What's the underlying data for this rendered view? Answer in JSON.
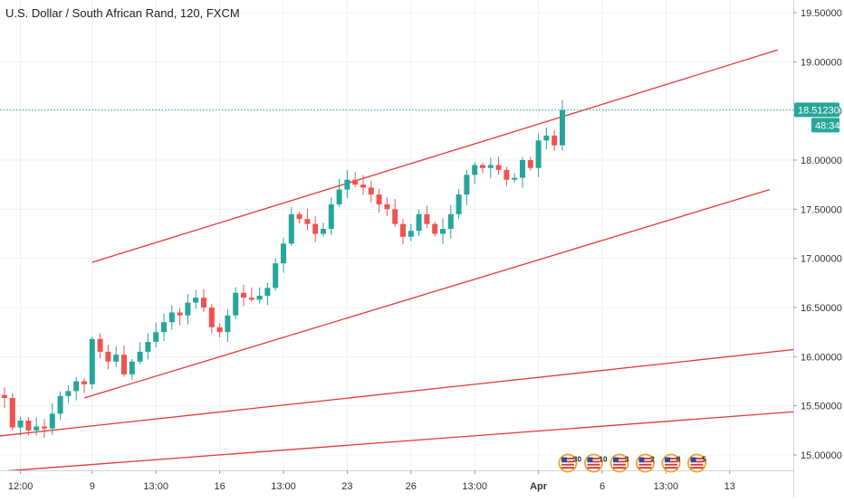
{
  "title": "U.S. Dollar / South African Rand, 120, FXCM",
  "price_tag": {
    "value": "18.51230",
    "countdown": "48:34"
  },
  "colors": {
    "up": "#26a69a",
    "down": "#ef5350",
    "trendline": "#e53935",
    "grid": "#eef0f3",
    "axis_text": "#333333",
    "tag_bg": "#26a69a",
    "price_line": "#26a69a"
  },
  "event_icons": [
    {
      "icon": "us-flag-icon",
      "count": "30"
    },
    {
      "icon": "us-flag-icon",
      "count": "10"
    },
    {
      "icon": "us-flag-icon",
      "count": "3"
    },
    {
      "icon": "us-flag-icon",
      "count": "2"
    },
    {
      "icon": "us-flag-icon",
      "count": "8"
    },
    {
      "icon": "us-flag-icon",
      "count": "5"
    }
  ],
  "chart_data": {
    "type": "candlestick",
    "ylim": [
      14.8,
      19.62
    ],
    "grid": true,
    "y_ticks": [
      "19.50000",
      "19.00000",
      "18.50000",
      "18.00000",
      "17.50000",
      "17.00000",
      "16.50000",
      "16.00000",
      "15.50000",
      "15.00000"
    ],
    "y_tick_values": [
      19.5,
      19.0,
      18.5,
      18.0,
      17.5,
      17.0,
      16.5,
      16.0,
      15.5,
      15.0
    ],
    "x_ticks": [
      "12:00",
      "9",
      "13:00",
      "16",
      "13:00",
      "23",
      "26",
      "13:00",
      "Apr",
      "6",
      "13:00",
      "13"
    ],
    "x_tick_bars": [
      2,
      11,
      19,
      27,
      35,
      43,
      51,
      59,
      67,
      75,
      83,
      91
    ],
    "x_tick_bold": [
      false,
      false,
      false,
      false,
      false,
      false,
      false,
      false,
      true,
      false,
      false,
      false
    ],
    "price_levels": [
      {
        "x": 0,
        "close": 15.58
      },
      {
        "x": 1,
        "close": 15.28
      },
      {
        "x": 2,
        "close": 15.35
      },
      {
        "x": 3,
        "close": 15.25
      },
      {
        "x": 4,
        "close": 15.29
      },
      {
        "x": 5,
        "close": 15.27
      },
      {
        "x": 6,
        "close": 15.42
      },
      {
        "x": 7,
        "close": 15.6
      },
      {
        "x": 8,
        "close": 15.65
      },
      {
        "x": 9,
        "close": 15.75
      },
      {
        "x": 10,
        "close": 15.72
      },
      {
        "x": 11,
        "close": 16.18
      },
      {
        "x": 12,
        "close": 16.05
      },
      {
        "x": 13,
        "close": 15.95
      },
      {
        "x": 14,
        "close": 16.02
      },
      {
        "x": 15,
        "close": 15.82
      },
      {
        "x": 16,
        "close": 15.95
      },
      {
        "x": 17,
        "close": 16.05
      },
      {
        "x": 18,
        "close": 16.15
      },
      {
        "x": 19,
        "close": 16.25
      },
      {
        "x": 20,
        "close": 16.35
      },
      {
        "x": 21,
        "close": 16.45
      },
      {
        "x": 22,
        "close": 16.42
      },
      {
        "x": 23,
        "close": 16.55
      },
      {
        "x": 24,
        "close": 16.6
      },
      {
        "x": 25,
        "close": 16.5
      },
      {
        "x": 26,
        "close": 16.3
      },
      {
        "x": 27,
        "close": 16.25
      },
      {
        "x": 28,
        "close": 16.42
      },
      {
        "x": 29,
        "close": 16.65
      },
      {
        "x": 30,
        "close": 16.6
      },
      {
        "x": 31,
        "close": 16.58
      },
      {
        "x": 32,
        "close": 16.62
      },
      {
        "x": 33,
        "close": 16.7
      },
      {
        "x": 34,
        "close": 16.95
      },
      {
        "x": 35,
        "close": 17.15
      },
      {
        "x": 36,
        "close": 17.45
      },
      {
        "x": 37,
        "close": 17.4
      },
      {
        "x": 38,
        "close": 17.35
      },
      {
        "x": 39,
        "close": 17.25
      },
      {
        "x": 40,
        "close": 17.3
      },
      {
        "x": 41,
        "close": 17.55
      },
      {
        "x": 42,
        "close": 17.7
      },
      {
        "x": 43,
        "close": 17.8
      },
      {
        "x": 44,
        "close": 17.75
      },
      {
        "x": 45,
        "close": 17.72
      },
      {
        "x": 46,
        "close": 17.65
      },
      {
        "x": 47,
        "close": 17.55
      },
      {
        "x": 48,
        "close": 17.5
      },
      {
        "x": 49,
        "close": 17.35
      },
      {
        "x": 50,
        "close": 17.22
      },
      {
        "x": 51,
        "close": 17.28
      },
      {
        "x": 52,
        "close": 17.45
      },
      {
        "x": 53,
        "close": 17.35
      },
      {
        "x": 54,
        "close": 17.25
      },
      {
        "x": 55,
        "close": 17.3
      },
      {
        "x": 56,
        "close": 17.45
      },
      {
        "x": 57,
        "close": 17.65
      },
      {
        "x": 58,
        "close": 17.85
      },
      {
        "x": 59,
        "close": 17.95
      },
      {
        "x": 60,
        "close": 17.92
      },
      {
        "x": 61,
        "close": 17.95
      },
      {
        "x": 62,
        "close": 17.9
      },
      {
        "x": 63,
        "close": 17.8
      },
      {
        "x": 64,
        "close": 17.82
      },
      {
        "x": 65,
        "close": 18.0
      },
      {
        "x": 66,
        "close": 17.92
      },
      {
        "x": 67,
        "close": 18.2
      },
      {
        "x": 68,
        "close": 18.25
      },
      {
        "x": 69,
        "close": 18.15
      },
      {
        "x": 70,
        "close": 18.51
      }
    ],
    "trendlines": [
      {
        "from": {
          "bar": 11,
          "price": 16.96
        },
        "to": {
          "bar": 97,
          "price": 19.12
        }
      },
      {
        "from": {
          "bar": 10,
          "price": 15.58
        },
        "to": {
          "bar": 96,
          "price": 17.7
        }
      },
      {
        "from": {
          "bar": -1,
          "price": 15.19
        },
        "to": {
          "bar": 109,
          "price": 16.16
        }
      },
      {
        "from": {
          "bar": -1,
          "price": 14.83
        },
        "to": {
          "bar": 109,
          "price": 15.5
        }
      }
    ],
    "last_price": 18.5123
  }
}
